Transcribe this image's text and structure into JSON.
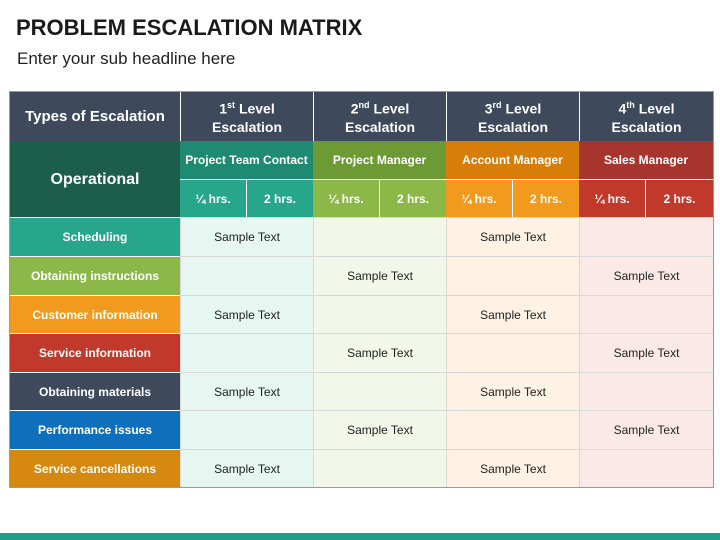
{
  "title": "PROBLEM ESCALATION MATRIX",
  "subtitle": "Enter your sub headline here",
  "corner_label": "Types of Escalation",
  "operational_label": "Operational",
  "levels": [
    {
      "num": "1",
      "sup": "st",
      "line1": "Level",
      "line2": "Escalation",
      "manager": "Project Team Contact",
      "hrs": [
        "¼ hrs.",
        "2 hrs."
      ]
    },
    {
      "num": "2",
      "sup": "nd",
      "line1": "Level",
      "line2": "Escalation",
      "manager": "Project Manager",
      "hrs": [
        "¼ hrs.",
        "2 hrs."
      ]
    },
    {
      "num": "3",
      "sup": "rd",
      "line1": "Level",
      "line2": "Escalation",
      "manager": "Account Manager",
      "hrs": [
        "¼ hrs.",
        "2 hrs."
      ]
    },
    {
      "num": "4",
      "sup": "th",
      "line1": "Level",
      "line2": "Escalation",
      "manager": "Sales Manager",
      "hrs": [
        "¼ hrs.",
        "2 hrs."
      ]
    }
  ],
  "rows": [
    {
      "label": "Scheduling",
      "cells": [
        "Sample Text",
        "",
        "Sample Text",
        ""
      ]
    },
    {
      "label": "Obtaining instructions",
      "cells": [
        "",
        "Sample Text",
        "",
        "Sample Text"
      ]
    },
    {
      "label": "Customer information",
      "cells": [
        "Sample Text",
        "",
        "Sample Text",
        ""
      ]
    },
    {
      "label": "Service information",
      "cells": [
        "",
        "Sample Text",
        "",
        "Sample Text"
      ]
    },
    {
      "label": "Obtaining materials",
      "cells": [
        "Sample Text",
        "",
        "Sample Text",
        ""
      ]
    },
    {
      "label": "Performance issues",
      "cells": [
        "",
        "Sample Text",
        "",
        "Sample Text"
      ]
    },
    {
      "label": "Service cancellations",
      "cells": [
        "Sample Text",
        "",
        "Sample Text",
        ""
      ]
    }
  ],
  "colors": {
    "header_dark": "#3e4a5c",
    "operational": "#1d5e4b",
    "accent_teal": "#28a68b",
    "accent_green": "#8cb849",
    "accent_orange": "#f29a1e",
    "accent_red": "#c0392b",
    "accent_blue": "#0e6fbd",
    "accent_darkorange": "#d68910"
  }
}
